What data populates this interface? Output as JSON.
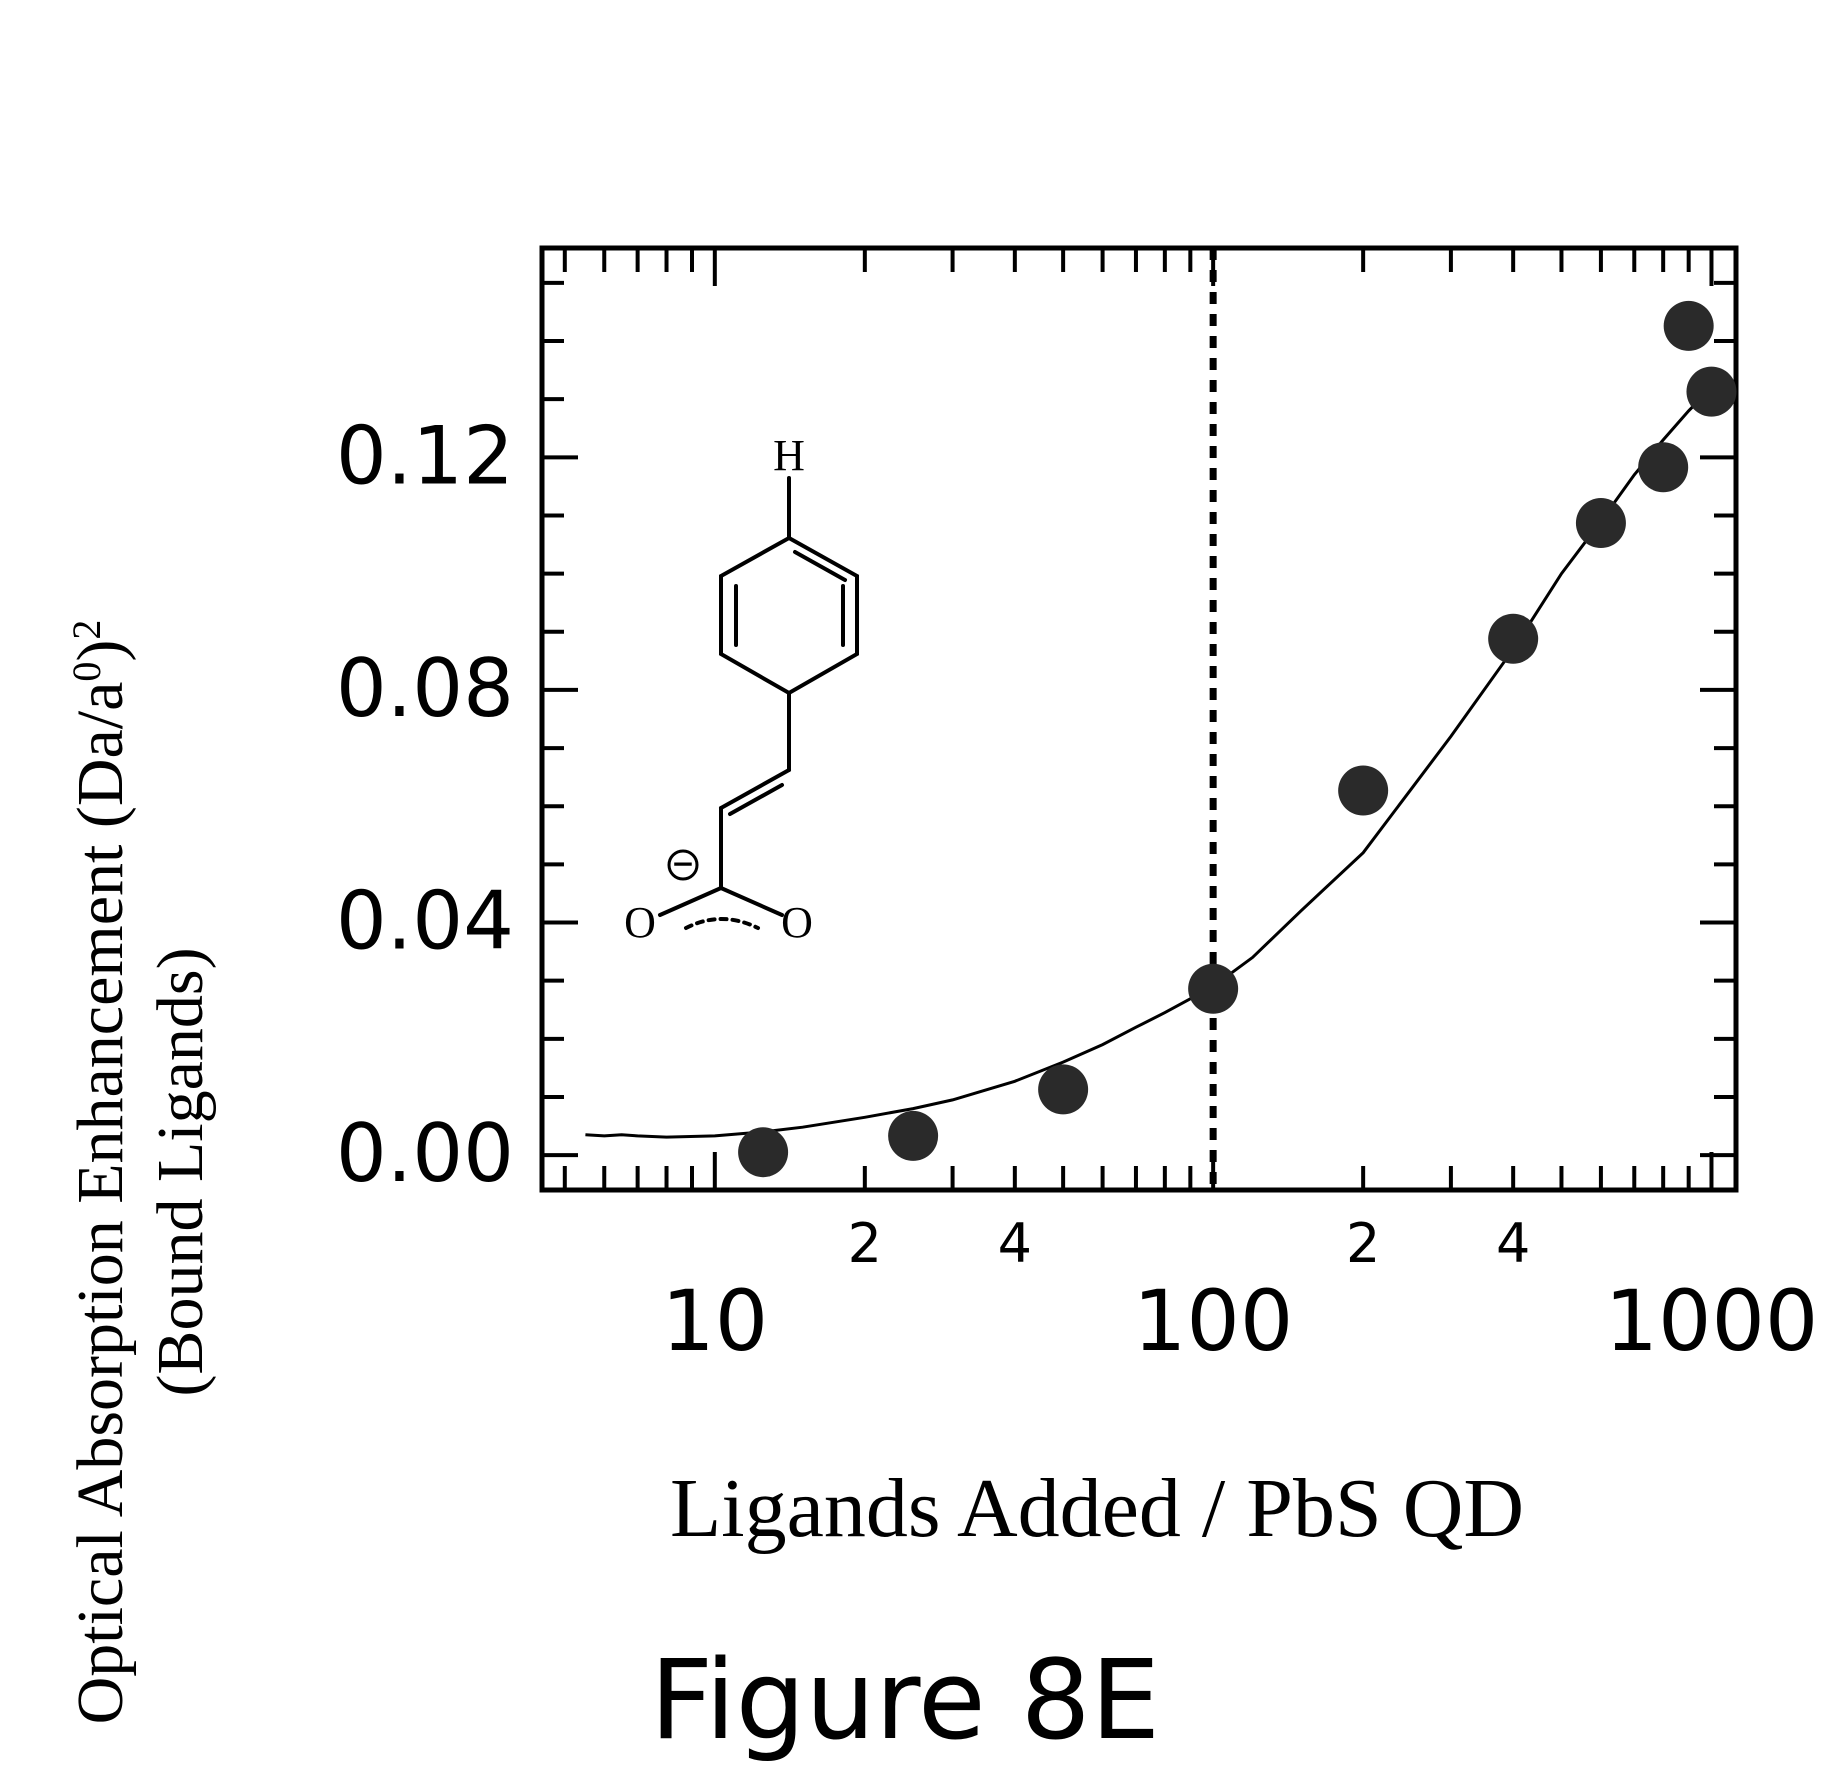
{
  "figure_label": "Figure 8E",
  "colors": {
    "ink": "#000000",
    "marker": "#2a2a2a",
    "background": "#ffffff"
  },
  "chart_data": {
    "type": "scatter",
    "xscale": "log",
    "xlim": [
      4.5,
      1120
    ],
    "ylim": [
      -0.006,
      0.156
    ],
    "xlabel": "Ligands Added / PbS QD",
    "ylabel": {
      "line1_prefix": "Optical Absorption Enhancement (Da/a",
      "line1_sup1": "0",
      "line1_mid": ")",
      "line1_sup2": "2",
      "line2": "(Bound Ligands)"
    },
    "y_ticks": [
      {
        "value": 0.0,
        "label": "0.00"
      },
      {
        "value": 0.04,
        "label": "0.04"
      },
      {
        "value": 0.08,
        "label": "0.08"
      },
      {
        "value": 0.12,
        "label": "0.12"
      }
    ],
    "x_major_ticks": [
      {
        "value": 10,
        "label": "10"
      },
      {
        "value": 100,
        "label": "100"
      },
      {
        "value": 1000,
        "label": "1000"
      }
    ],
    "x_minor_labels": [
      {
        "value": 20,
        "label": "2"
      },
      {
        "value": 40,
        "label": "4"
      },
      {
        "value": 200,
        "label": "2"
      },
      {
        "value": 400,
        "label": "4"
      }
    ],
    "reference_line_x": 100,
    "series": [
      {
        "points": [
          {
            "x": 12.5,
            "y": 0.0005
          },
          {
            "x": 25,
            "y": 0.0033
          },
          {
            "x": 50,
            "y": 0.0113
          },
          {
            "x": 100,
            "y": 0.0286
          },
          {
            "x": 200,
            "y": 0.0627
          },
          {
            "x": 400,
            "y": 0.0888
          },
          {
            "x": 600,
            "y": 0.1087
          },
          {
            "x": 800,
            "y": 0.1183
          },
          {
            "x": 900,
            "y": 0.1426
          },
          {
            "x": 1000,
            "y": 0.1313
          }
        ]
      },
      {
        "kind": "fit",
        "points": [
          {
            "x": 5.5,
            "y": 0.0035
          },
          {
            "x": 6,
            "y": 0.0033
          },
          {
            "x": 6.5,
            "y": 0.0035
          },
          {
            "x": 7,
            "y": 0.0033
          },
          {
            "x": 8,
            "y": 0.0031
          },
          {
            "x": 10,
            "y": 0.0033
          },
          {
            "x": 12.5,
            "y": 0.004
          },
          {
            "x": 15,
            "y": 0.0048
          },
          {
            "x": 20,
            "y": 0.0065
          },
          {
            "x": 25,
            "y": 0.008
          },
          {
            "x": 30,
            "y": 0.0095
          },
          {
            "x": 40,
            "y": 0.0127
          },
          {
            "x": 50,
            "y": 0.016
          },
          {
            "x": 60,
            "y": 0.019
          },
          {
            "x": 70,
            "y": 0.022
          },
          {
            "x": 80,
            "y": 0.0245
          },
          {
            "x": 100,
            "y": 0.029
          },
          {
            "x": 120,
            "y": 0.034
          },
          {
            "x": 150,
            "y": 0.042
          },
          {
            "x": 200,
            "y": 0.052
          },
          {
            "x": 250,
            "y": 0.063
          },
          {
            "x": 300,
            "y": 0.072
          },
          {
            "x": 400,
            "y": 0.087
          },
          {
            "x": 500,
            "y": 0.1
          },
          {
            "x": 600,
            "y": 0.109
          },
          {
            "x": 700,
            "y": 0.117
          },
          {
            "x": 800,
            "y": 0.123
          },
          {
            "x": 900,
            "y": 0.128
          },
          {
            "x": 1000,
            "y": 0.132
          }
        ]
      }
    ]
  },
  "inset_molecule": {
    "atom_top": "H",
    "atom_left": "O",
    "atom_right": "O",
    "charge": "−"
  }
}
